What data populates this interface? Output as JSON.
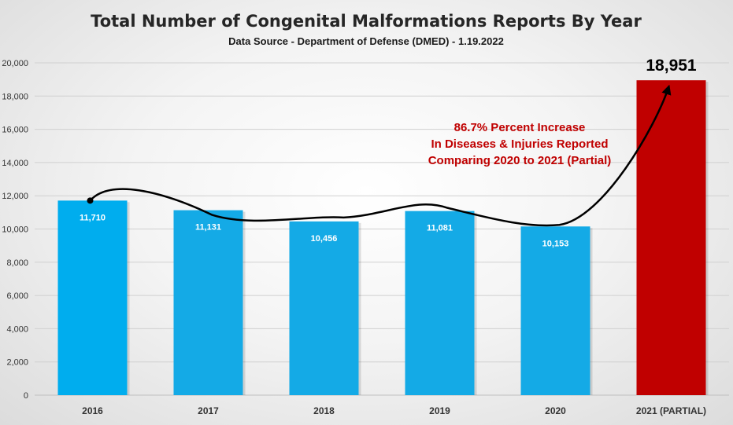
{
  "chart_data": {
    "type": "bar",
    "title": "Total Number of Congenital Malformations Reports By Year",
    "subtitle": "Data Source - Department of Defense (DMED) - 1.19.2022",
    "categories": [
      "2016",
      "2017",
      "2018",
      "2019",
      "2020",
      "2021 (PARTIAL)"
    ],
    "values": [
      11710,
      11131,
      10456,
      11081,
      10153,
      18951
    ],
    "value_labels": [
      "11,710",
      "11,131",
      "10,456",
      "11,081",
      "10,153",
      "18,951"
    ],
    "bar_colors": [
      "#00adee",
      "#14aae6",
      "#14aae6",
      "#14aae6",
      "#14aae6",
      "#c00000"
    ],
    "ylim": [
      0,
      20000
    ],
    "yticks": [
      0,
      2000,
      4000,
      6000,
      8000,
      10000,
      12000,
      14000,
      16000,
      18000,
      20000
    ],
    "ytick_labels": [
      "0",
      "2,000",
      "4,000",
      "6,000",
      "8,000",
      "10,000",
      "12,000",
      "14,000",
      "16,000",
      "18,000",
      "20,000"
    ],
    "grid": true,
    "annotation": {
      "lines": [
        "86.7% Percent Increase",
        "In Diseases & Injuries Reported",
        "Comparing 2020 to 2021 (Partial)"
      ],
      "color": "#c00000"
    },
    "xlabel": "",
    "ylabel": ""
  }
}
